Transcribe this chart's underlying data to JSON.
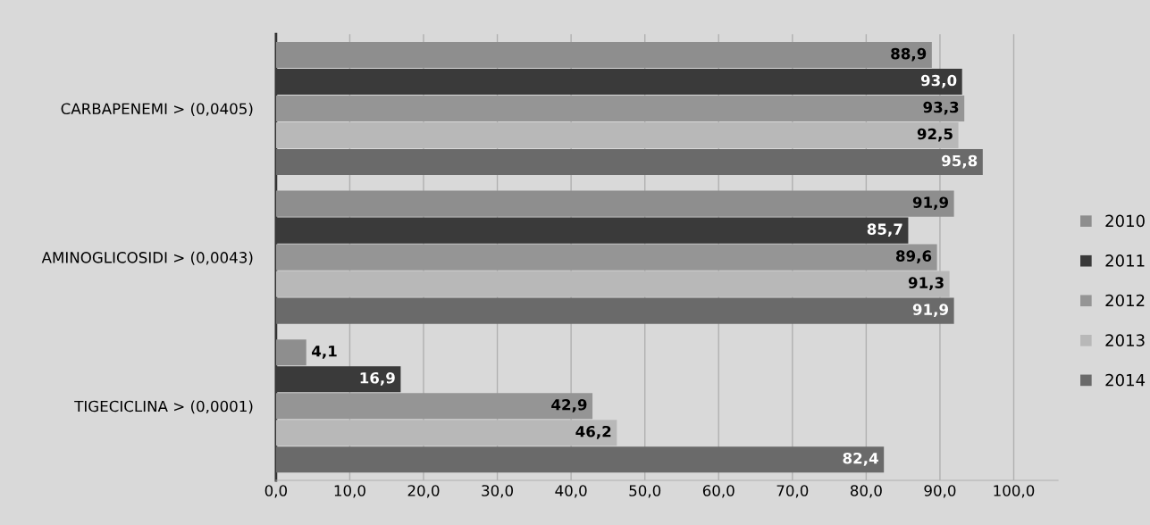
{
  "chart_data": {
    "type": "bar",
    "orientation": "horizontal",
    "categories": [
      "CARBAPENEMI > (0,0405)",
      "AMINOGLICOSIDI > (0,0043)",
      "TIGECICLINA > (0,0001)"
    ],
    "series": [
      {
        "name": "2010",
        "color": "#8e8e8e",
        "values": [
          88.9,
          91.9,
          4.1
        ],
        "value_labels": [
          "88,9",
          "91,9",
          "4,1"
        ]
      },
      {
        "name": "2011",
        "color": "#3a3a3a",
        "values": [
          93.0,
          85.7,
          16.9
        ],
        "value_labels": [
          "93,0",
          "85,7",
          "16,9"
        ]
      },
      {
        "name": "2012",
        "color": "#959595",
        "values": [
          93.3,
          89.6,
          42.9
        ],
        "value_labels": [
          "93,3",
          "89,6",
          "42,9"
        ]
      },
      {
        "name": "2013",
        "color": "#b8b8b8",
        "values": [
          92.5,
          91.3,
          46.2
        ],
        "value_labels": [
          "92,5",
          "91,3",
          "46,2"
        ]
      },
      {
        "name": "2014",
        "color": "#6a6a6a",
        "values": [
          95.8,
          91.9,
          82.4
        ],
        "value_labels": [
          "95,8",
          "91,9",
          "82,4"
        ]
      }
    ],
    "xlim": [
      0,
      106
    ],
    "xticks": [
      {
        "value": 0,
        "label": "0,0"
      },
      {
        "value": 10,
        "label": "10,0"
      },
      {
        "value": 20,
        "label": "20,0"
      },
      {
        "value": 30,
        "label": "30,0"
      },
      {
        "value": 40,
        "label": "40,0"
      },
      {
        "value": 50,
        "label": "50,0"
      },
      {
        "value": 60,
        "label": "60,0"
      },
      {
        "value": 70,
        "label": "70,0"
      },
      {
        "value": 80,
        "label": "80,0"
      },
      {
        "value": 90,
        "label": "90,0"
      },
      {
        "value": 100,
        "label": "100,0"
      }
    ],
    "grid": "x",
    "legend": "right"
  }
}
